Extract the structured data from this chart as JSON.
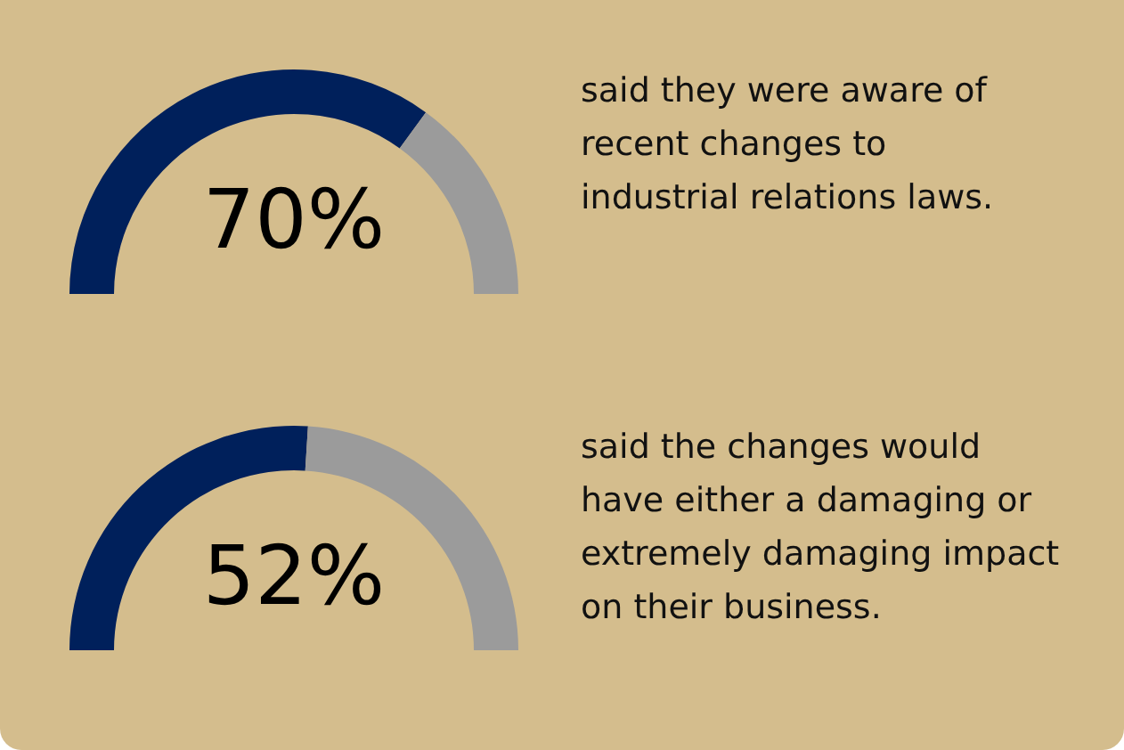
{
  "chart_data": [
    {
      "type": "donut",
      "categories": [
        null,
        null
      ],
      "values": [
        70,
        30
      ],
      "colors": [
        "#00205b",
        "#9b9b9b"
      ],
      "value_labels": [
        "70%",
        null
      ],
      "annotations": [
        "said they were aware of recent changes to industrial relations laws."
      ]
    },
    {
      "type": "donut",
      "categories": [
        null,
        null
      ],
      "values": [
        52,
        48
      ],
      "colors": [
        "#00205b",
        "#9b9b9b"
      ],
      "value_labels": [
        "52%",
        null
      ],
      "annotations": [
        "said the changes would have either a damaging or extremely damaging impact on their business."
      ]
    }
  ]
}
